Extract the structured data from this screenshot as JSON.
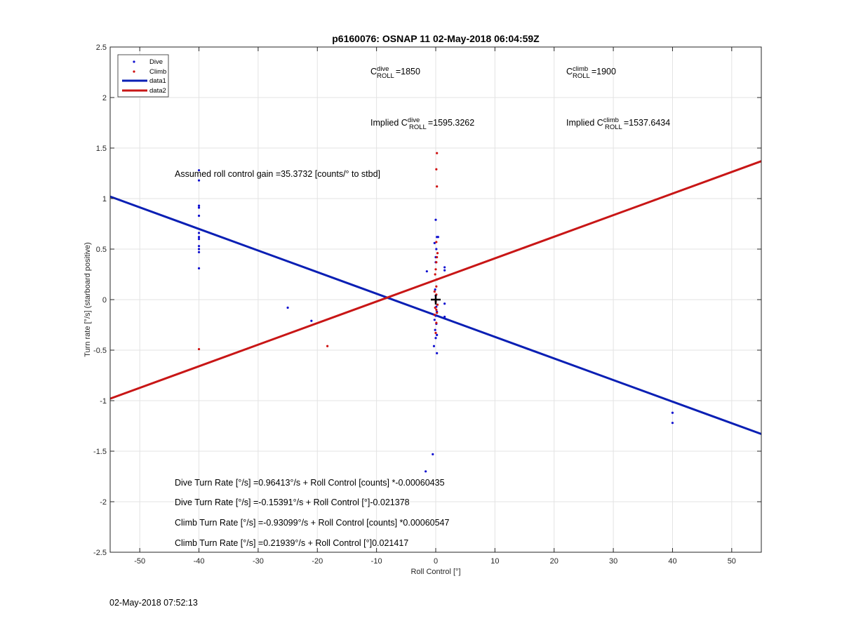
{
  "chart_data": {
    "type": "scatter",
    "title": "p6160076: OSNAP 11 02-May-2018 06:04:59Z",
    "xlabel": "Roll Control [°]",
    "ylabel": "Turn rate [°/s] (starboard positive)",
    "xlim": [
      -55,
      55
    ],
    "ylim": [
      -2.5,
      2.5
    ],
    "xticks": [
      -50,
      -40,
      -30,
      -20,
      -10,
      0,
      10,
      20,
      30,
      40,
      50
    ],
    "yticks": [
      -2.5,
      -2,
      -1.5,
      -1,
      -0.5,
      0,
      0.5,
      1,
      1.5,
      2,
      2.5
    ],
    "xtick_labels": [
      "-50",
      "-40",
      "-30",
      "-20",
      "-10",
      "0",
      "10",
      "20",
      "30",
      "40",
      "50"
    ],
    "ytick_labels": [
      "-2.5",
      "-2",
      "-1.5",
      "-1",
      "-0.5",
      "0",
      "0.5",
      "1",
      "1.5",
      "2",
      "2.5"
    ],
    "grid": true,
    "legend_position": "top-left",
    "legend": [
      {
        "label": "Dive",
        "kind": "marker",
        "color": "#1010d0"
      },
      {
        "label": "Climb",
        "kind": "marker",
        "color": "#d01010"
      },
      {
        "label": "data1",
        "kind": "line",
        "color": "#0a1fb4"
      },
      {
        "label": "data2",
        "kind": "line",
        "color": "#c81616"
      }
    ],
    "series": [
      {
        "name": "Dive",
        "type": "scatter",
        "color": "#1010d0",
        "points": [
          [
            -40,
            1.28
          ],
          [
            -40,
            1.18
          ],
          [
            -40,
            0.93
          ],
          [
            -40,
            0.91
          ],
          [
            -40,
            0.83
          ],
          [
            -40,
            0.66
          ],
          [
            -40,
            0.62
          ],
          [
            -40,
            0.6
          ],
          [
            -40,
            0.53
          ],
          [
            -40,
            0.5
          ],
          [
            -40,
            0.47
          ],
          [
            -40,
            0.31
          ],
          [
            -25,
            -0.08
          ],
          [
            -21,
            -0.21
          ],
          [
            -1.5,
            0.28
          ],
          [
            1.5,
            0.32
          ],
          [
            1.5,
            0.29
          ],
          [
            1.5,
            -0.04
          ],
          [
            1.5,
            -0.17
          ],
          [
            0,
            0.79
          ],
          [
            0.2,
            0.62
          ],
          [
            0.4,
            0.62
          ],
          [
            -0.2,
            0.56
          ],
          [
            0.1,
            0.5
          ],
          [
            0,
            0.42
          ],
          [
            0,
            0.37
          ],
          [
            -0.1,
            0.1
          ],
          [
            0,
            0.04
          ],
          [
            0.1,
            -0.07
          ],
          [
            0.2,
            -0.12
          ],
          [
            0,
            -0.16
          ],
          [
            -0.2,
            -0.2
          ],
          [
            0.1,
            -0.24
          ],
          [
            -0.1,
            -0.3
          ],
          [
            0.2,
            -0.35
          ],
          [
            0,
            -0.38
          ],
          [
            -0.3,
            -0.46
          ],
          [
            0.2,
            -0.53
          ],
          [
            -0.5,
            -1.53
          ],
          [
            -1.7,
            -1.7
          ],
          [
            40,
            -1.12
          ],
          [
            40,
            -1.22
          ]
        ]
      },
      {
        "name": "Climb",
        "type": "scatter",
        "color": "#d01010",
        "points": [
          [
            -40,
            -0.49
          ],
          [
            -18.3,
            -0.46
          ],
          [
            0.2,
            1.45
          ],
          [
            0.1,
            1.29
          ],
          [
            0.2,
            1.12
          ],
          [
            0.1,
            0.57
          ],
          [
            0.3,
            0.46
          ],
          [
            0.2,
            0.42
          ],
          [
            0.1,
            0.37
          ],
          [
            0,
            0.3
          ],
          [
            -0.1,
            0.25
          ],
          [
            0.2,
            0.2
          ],
          [
            0.1,
            0.13
          ],
          [
            -0.2,
            0.08
          ],
          [
            0.1,
            0.05
          ],
          [
            0,
            -0.02
          ],
          [
            0.3,
            -0.05
          ],
          [
            -0.1,
            -0.08
          ],
          [
            0.1,
            -0.1
          ],
          [
            0.2,
            -0.13
          ],
          [
            -0.2,
            -0.15
          ],
          [
            0.1,
            -0.23
          ],
          [
            0,
            -0.33
          ]
        ]
      },
      {
        "name": "data1",
        "type": "line",
        "color": "#0a1fb4",
        "x": [
          -55,
          55
        ],
        "y": [
          1.02,
          -1.33
        ]
      },
      {
        "name": "data2",
        "type": "line",
        "color": "#c81616",
        "x": [
          -55,
          55
        ],
        "y": [
          -0.98,
          1.37
        ]
      }
    ],
    "crosshair": {
      "x": 0,
      "y": 0
    },
    "annotations": {
      "c_dive": {
        "base": "C",
        "sup": "dive",
        "sub": "ROLL",
        "value": "=1850"
      },
      "c_climb": {
        "base": "C",
        "sup": "climb",
        "sub": "ROLL",
        "value": "=1900"
      },
      "implied_dive": {
        "prefix": "Implied C",
        "sup": "dive",
        "sub": "ROLL",
        "value": "=1595.3262"
      },
      "implied_climb": {
        "prefix": "Implied C",
        "sup": "climb",
        "sub": "ROLL",
        "value": "=1537.6434"
      },
      "gain": "Assumed roll control gain =35.3732 [counts/° to stbd]",
      "equations": [
        "Dive Turn Rate [°/s] =0.96413°/s + Roll Control [counts] *-0.00060435",
        "Dive Turn Rate [°/s] =-0.15391°/s + Roll Control [°]-0.021378",
        "Climb Turn Rate [°/s] =-0.93099°/s + Roll Control [counts] *0.00060547",
        "Climb Turn Rate [°/s] =0.21939°/s + Roll Control [°]0.021417"
      ]
    }
  },
  "footer": {
    "timestamp": "02-May-2018 07:52:13"
  }
}
